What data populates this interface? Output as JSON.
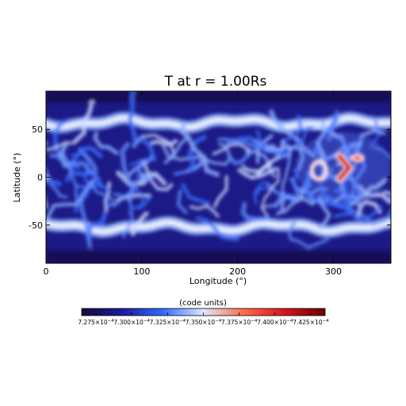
{
  "chart_data": {
    "type": "heatmap",
    "title": "T at r = 1.00Rs",
    "xlabel": "Longitude (°)",
    "ylabel": "Latitude (°)",
    "xlim": [
      0,
      360
    ],
    "ylim": [
      -90,
      90
    ],
    "x_ticks": [
      0,
      100,
      200,
      300
    ],
    "x_tick_labels": [
      "0",
      "100",
      "200",
      "300"
    ],
    "y_ticks": [
      50,
      0,
      -50
    ],
    "y_tick_labels": [
      "50",
      "0",
      "-50"
    ],
    "colorbar": {
      "title": "(code units)",
      "range": [
        0.0007265,
        0.0007435
      ],
      "colors": [
        "#1a0a3c",
        "#1a1a9e",
        "#2f6bff",
        "#dde8ff",
        "#ff6a4a",
        "#d8141c",
        "#6a0008"
      ],
      "tick_labels": [
        "7.275×10",
        "7.300×10",
        "7.325×10",
        "7.350×10",
        "7.375×10",
        "7.400×10",
        "7.425×10"
      ],
      "tick_exponent": "−4"
    },
    "features": [
      {
        "kind": "band",
        "lat": 57,
        "intensity": "high"
      },
      {
        "kind": "band",
        "lat": -52,
        "intensity": "high"
      },
      {
        "kind": "hotspot",
        "lon": 313,
        "lat": 10,
        "value": 0.000742
      },
      {
        "kind": "hotspot",
        "lon": 325,
        "lat": 20,
        "value": 0.000739
      },
      {
        "kind": "ring",
        "lon": 285,
        "lat": 7,
        "value": 0.000735
      }
    ]
  }
}
